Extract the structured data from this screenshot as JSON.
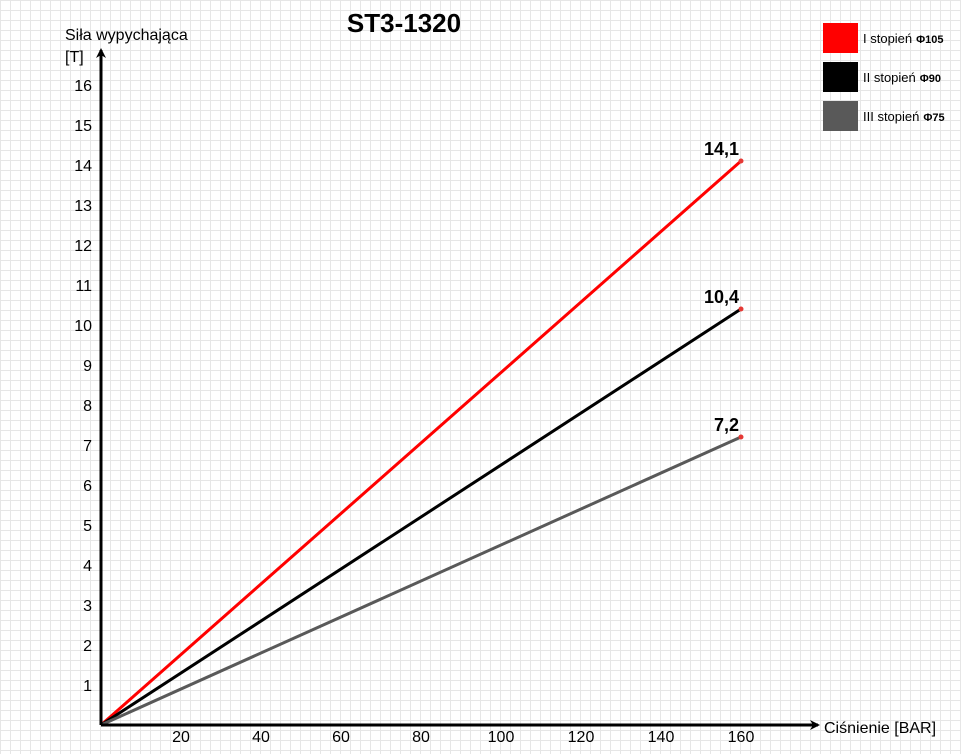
{
  "chart_data": {
    "type": "line",
    "title": "ST3-1320",
    "xlabel": "Ciśnienie [BAR]",
    "ylabel_line1": "Siła wypychająca",
    "ylabel_line2": "[T]",
    "xlim": [
      0,
      160
    ],
    "ylim": [
      0,
      16
    ],
    "x_ticks": [
      "20",
      "40",
      "60",
      "80",
      "100",
      "120",
      "140",
      "160"
    ],
    "y_ticks": [
      "1",
      "2",
      "3",
      "4",
      "5",
      "6",
      "7",
      "8",
      "9",
      "10",
      "11",
      "12",
      "13",
      "14",
      "15",
      "16"
    ],
    "grid": true,
    "legend_position": "top-right",
    "series": [
      {
        "name": "I stopień",
        "name_suffix": "Φ105",
        "color": "#ff0000",
        "x": [
          0,
          160
        ],
        "y": [
          0,
          14.1
        ],
        "end_label": "14,1"
      },
      {
        "name": "II stopień",
        "name_suffix": "Φ90",
        "color": "#000000",
        "x": [
          0,
          160
        ],
        "y": [
          0,
          10.4
        ],
        "end_label": "10,4"
      },
      {
        "name": "III stopień",
        "name_suffix": "Φ75",
        "color": "#595959",
        "x": [
          0,
          160
        ],
        "y": [
          0,
          7.2
        ],
        "end_label": "7,2"
      }
    ]
  }
}
